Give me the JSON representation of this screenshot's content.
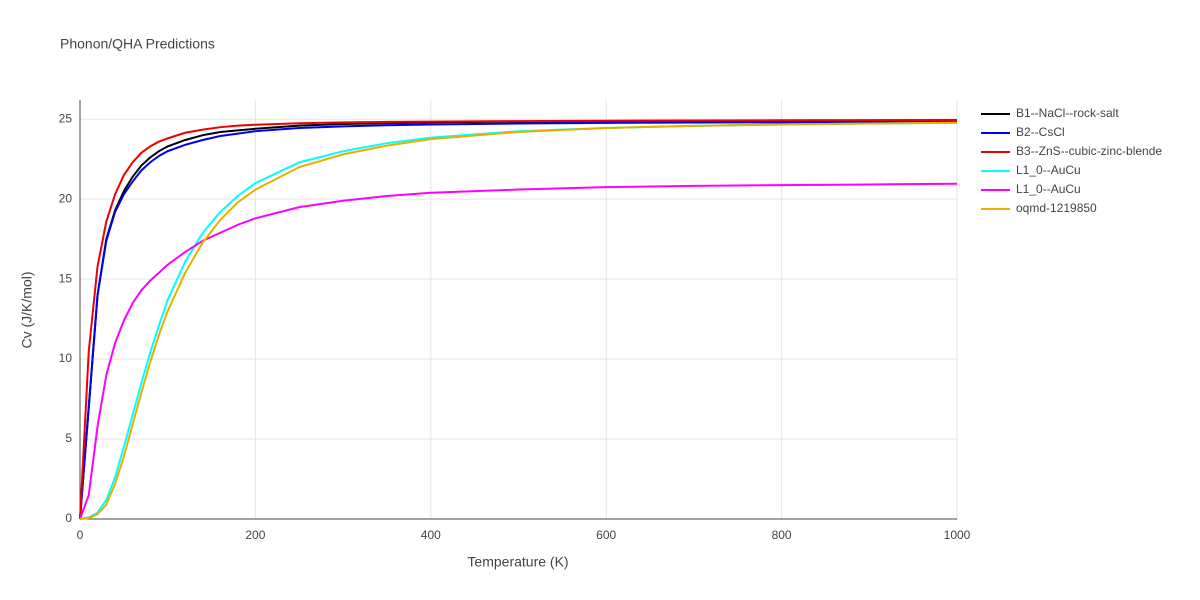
{
  "chart_data": {
    "type": "line",
    "title": "Phonon/QHA Predictions",
    "xlabel": "Temperature (K)",
    "ylabel": "Cv (J/K/mol)",
    "x": [
      0,
      10,
      20,
      30,
      40,
      50,
      60,
      70,
      80,
      90,
      100,
      120,
      140,
      160,
      180,
      200,
      250,
      300,
      350,
      400,
      500,
      600,
      700,
      800,
      900,
      1000
    ],
    "series": [
      {
        "name": "B1--NaCl--rock-salt",
        "color": "#000000",
        "values": [
          0,
          7,
          14,
          17.5,
          19.3,
          20.5,
          21.4,
          22.1,
          22.6,
          23.0,
          23.3,
          23.7,
          24.0,
          24.2,
          24.3,
          24.4,
          24.6,
          24.7,
          24.75,
          24.8,
          24.85,
          24.88,
          24.9,
          24.9,
          24.92,
          24.93
        ]
      },
      {
        "name": "B2--CsCl",
        "color": "#0000ee",
        "values": [
          0,
          7,
          14,
          17.4,
          19.2,
          20.3,
          21.1,
          21.8,
          22.3,
          22.7,
          23.0,
          23.4,
          23.7,
          23.95,
          24.1,
          24.25,
          24.45,
          24.55,
          24.62,
          24.67,
          24.73,
          24.77,
          24.79,
          24.8,
          24.82,
          24.83
        ]
      },
      {
        "name": "B3--ZnS--cubic-zinc-blende",
        "color": "#ee0000",
        "values": [
          0,
          10.5,
          15.8,
          18.6,
          20.3,
          21.5,
          22.3,
          22.9,
          23.3,
          23.6,
          23.8,
          24.15,
          24.35,
          24.5,
          24.6,
          24.65,
          24.75,
          24.8,
          24.83,
          24.85,
          24.88,
          24.9,
          24.92,
          24.93,
          24.94,
          24.95
        ]
      },
      {
        "name": "L1_0--AuCu",
        "color": "#00ffff",
        "values": [
          0,
          0.1,
          0.4,
          1.2,
          2.6,
          4.5,
          6.5,
          8.5,
          10.4,
          12.1,
          13.7,
          16.1,
          17.9,
          19.2,
          20.2,
          21.0,
          22.3,
          23.0,
          23.5,
          23.85,
          24.25,
          24.45,
          24.58,
          24.67,
          24.73,
          24.78
        ]
      },
      {
        "name": "L1_0--AuCu",
        "color": "#ff00ff",
        "values": [
          0,
          1.5,
          5.8,
          9.0,
          11.0,
          12.4,
          13.5,
          14.3,
          14.9,
          15.4,
          15.9,
          16.7,
          17.4,
          17.9,
          18.4,
          18.8,
          19.5,
          19.9,
          20.2,
          20.4,
          20.6,
          20.75,
          20.83,
          20.88,
          20.92,
          20.96
        ]
      },
      {
        "name": "oqmd-1219850",
        "color": "#e6b000",
        "values": [
          0,
          0.05,
          0.3,
          0.9,
          2.2,
          3.9,
          5.9,
          7.9,
          9.8,
          11.5,
          13.0,
          15.4,
          17.3,
          18.7,
          19.8,
          20.6,
          22.0,
          22.8,
          23.35,
          23.75,
          24.2,
          24.45,
          24.58,
          24.67,
          24.73,
          24.78
        ]
      }
    ],
    "xlim": [
      0,
      1000
    ],
    "xticks": [
      0,
      200,
      400,
      600,
      800,
      1000
    ],
    "ylim": [
      0,
      26.2
    ],
    "yticks": [
      0,
      5,
      10,
      15,
      20,
      25
    ],
    "grid": true
  }
}
